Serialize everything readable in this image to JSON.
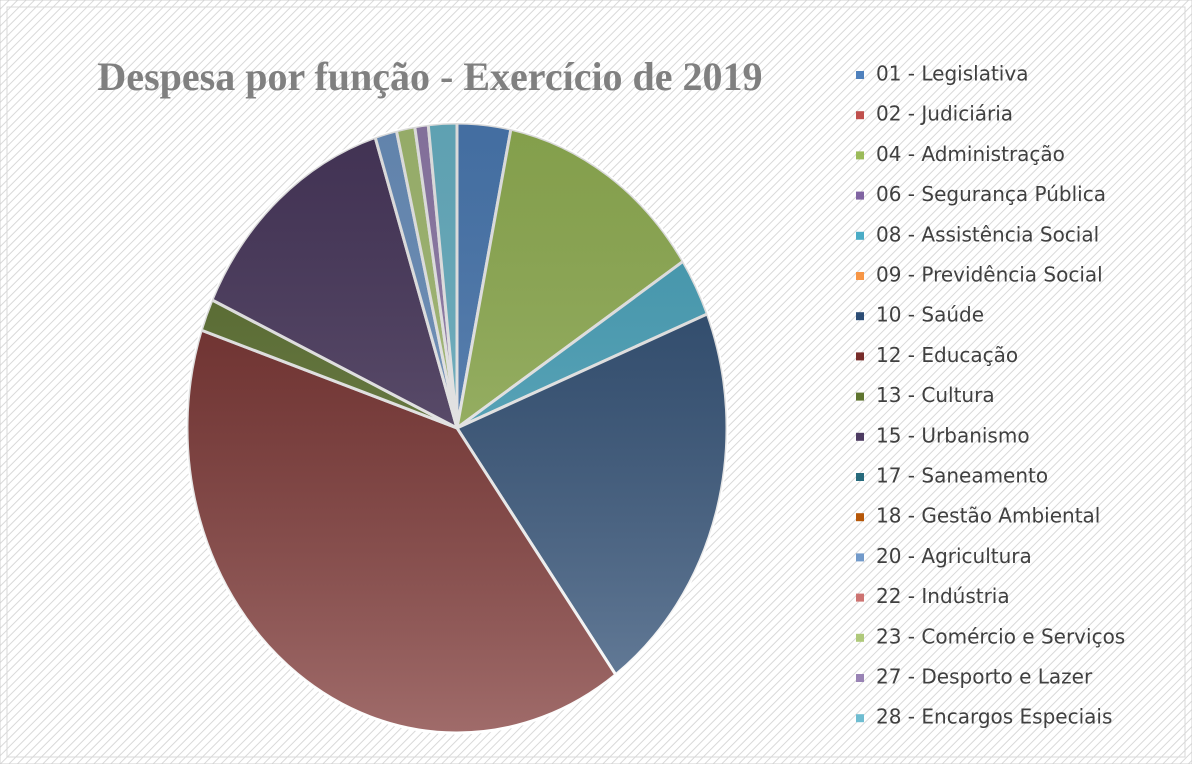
{
  "chart_data": {
    "type": "pie",
    "title": "Despesa por função - Exercício de 2019",
    "categories": [
      "01 - Legislativa",
      "02 - Judiciária",
      "04 - Administração",
      "06 - Segurança Pública",
      "08 - Assistência Social",
      "09 - Previdência Social",
      "10 - Saúde",
      "12 - Educação",
      "13 - Cultura",
      "15 - Urbanismo",
      "17 - Saneamento",
      "18 - Gestão Ambiental",
      "20 - Agricultura",
      "22 - Indústria",
      "23 - Comércio e Serviços",
      "27 - Desporto e Lazer",
      "28 - Encargos Especiais"
    ],
    "values": [
      3.2,
      0,
      12.6,
      0,
      3.1,
      0,
      21.1,
      40.2,
      1.7,
      13.2,
      0,
      0,
      1.3,
      0,
      1.1,
      0.8,
      1.7
    ],
    "colors": [
      "#4f81bd",
      "#c0504d",
      "#9bbb59",
      "#8064a2",
      "#4bacc6",
      "#f79646",
      "#2c4d75",
      "#772c2a",
      "#5f7530",
      "#4d3b62",
      "#276a7c",
      "#b65708",
      "#729aca",
      "#cd7371",
      "#afc97a",
      "#9983b5",
      "#6fbdd1"
    ],
    "legend": "right"
  }
}
